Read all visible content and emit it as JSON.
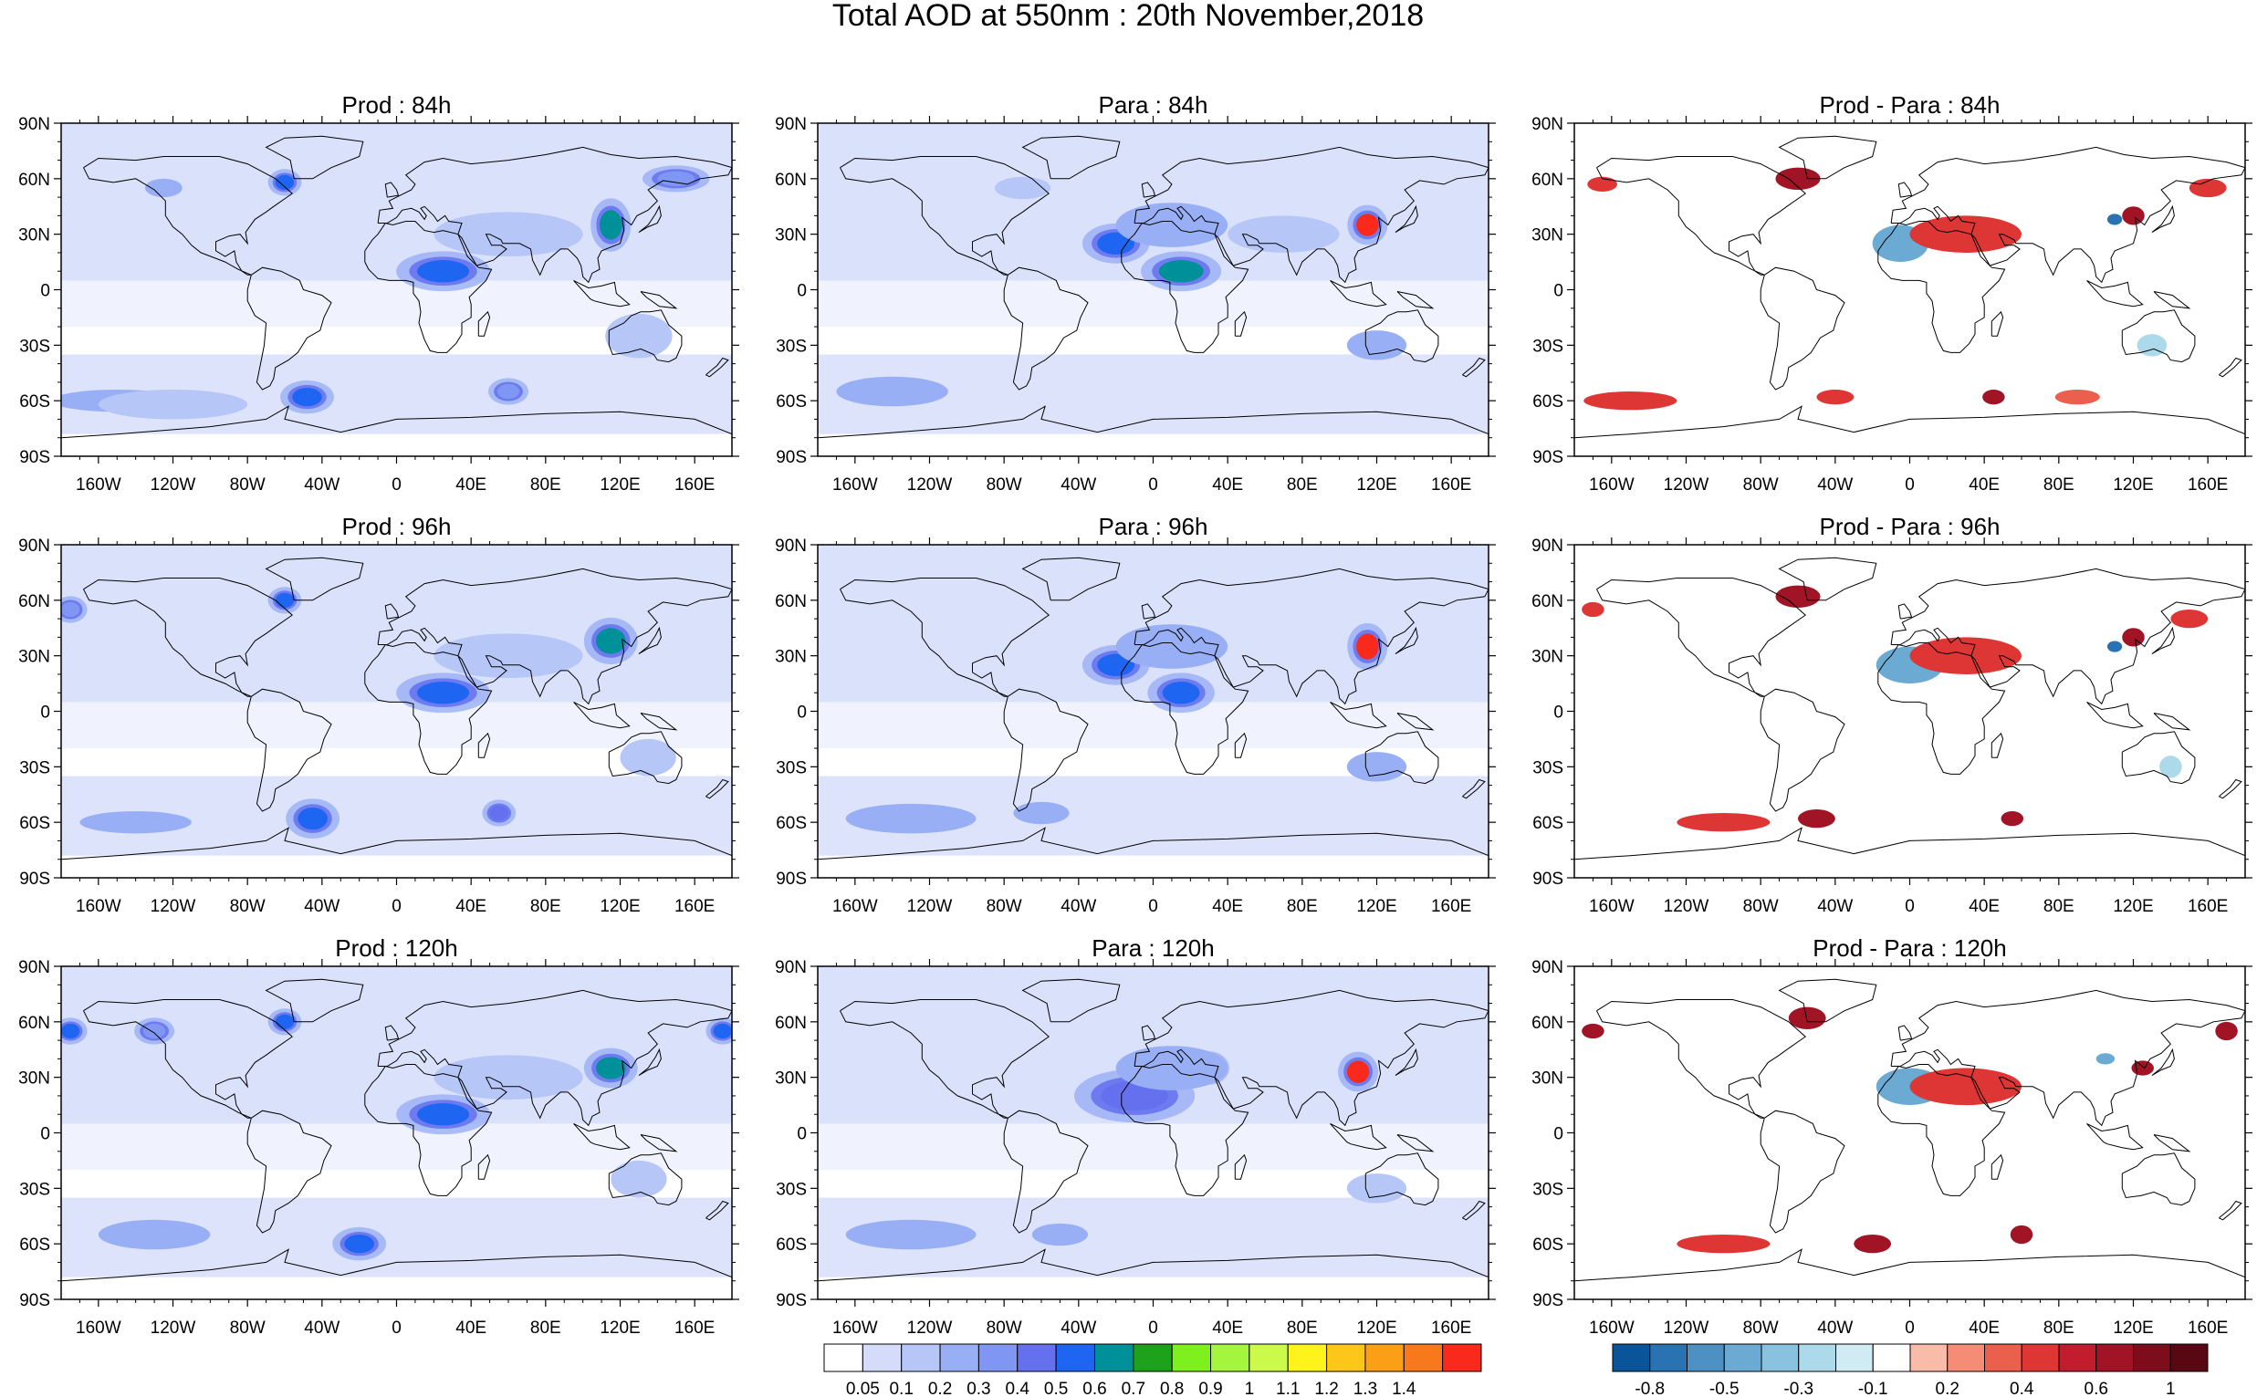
{
  "figure": {
    "title": "Total AOD at 550nm : 20th November,2018"
  },
  "axes": {
    "lat_labels": [
      "90N",
      "60N",
      "30N",
      "0",
      "30S",
      "60S",
      "90S"
    ],
    "lon_labels": [
      "160W",
      "120W",
      "80W",
      "40W",
      "0",
      "40E",
      "80E",
      "120E",
      "160E"
    ]
  },
  "panels": [
    {
      "id": "prod-84h",
      "title": "Prod : 84h",
      "kind": "aod",
      "row": 0,
      "col": 0,
      "blobs": [
        {
          "lon": -150,
          "lat": -60,
          "level": 3,
          "rx": 35,
          "ry": 6
        },
        {
          "lon": -120,
          "lat": -62,
          "level": 2,
          "rx": 40,
          "ry": 8
        },
        {
          "lon": -60,
          "lat": 58,
          "level": 6,
          "rx": 5,
          "ry": 4
        },
        {
          "lon": -125,
          "lat": 55,
          "level": 3,
          "rx": 10,
          "ry": 5
        },
        {
          "lon": 25,
          "lat": 10,
          "level": 6,
          "rx": 14,
          "ry": 6
        },
        {
          "lon": 115,
          "lat": 35,
          "level": 7,
          "rx": 6,
          "ry": 8
        },
        {
          "lon": -48,
          "lat": -58,
          "level": 6,
          "rx": 8,
          "ry": 5
        },
        {
          "lon": 60,
          "lat": -55,
          "level": 4,
          "rx": 6,
          "ry": 4
        },
        {
          "lon": 150,
          "lat": 60,
          "level": 4,
          "rx": 10,
          "ry": 4
        },
        {
          "lon": 130,
          "lat": -25,
          "level": 2,
          "rx": 18,
          "ry": 12
        },
        {
          "lon": 60,
          "lat": 30,
          "level": 2,
          "rx": 40,
          "ry": 12
        }
      ]
    },
    {
      "id": "para-84h",
      "title": "Para : 84h",
      "kind": "aod",
      "row": 0,
      "col": 1,
      "blobs": [
        {
          "lon": -20,
          "lat": 25,
          "level": 6,
          "rx": 10,
          "ry": 6
        },
        {
          "lon": 15,
          "lat": 10,
          "level": 7,
          "rx": 12,
          "ry": 6
        },
        {
          "lon": 115,
          "lat": 35,
          "level": 10,
          "rx": 6,
          "ry": 6
        },
        {
          "lon": 10,
          "lat": 35,
          "level": 3,
          "rx": 30,
          "ry": 12
        },
        {
          "lon": 120,
          "lat": -30,
          "level": 3,
          "rx": 16,
          "ry": 8
        },
        {
          "lon": -140,
          "lat": -55,
          "level": 3,
          "rx": 30,
          "ry": 8
        },
        {
          "lon": -70,
          "lat": 55,
          "level": 2,
          "rx": 15,
          "ry": 6
        },
        {
          "lon": 70,
          "lat": 30,
          "level": 2,
          "rx": 30,
          "ry": 10
        }
      ]
    },
    {
      "id": "diff-84h",
      "title": "Prod - Para : 84h",
      "kind": "diff",
      "row": 0,
      "col": 2,
      "blobs": [
        {
          "lon": -60,
          "lat": 60,
          "level": 3,
          "rx": 12,
          "ry": 6
        },
        {
          "lon": -165,
          "lat": 57,
          "level": 2,
          "rx": 8,
          "ry": 4
        },
        {
          "lon": -5,
          "lat": 25,
          "level": -2,
          "rx": 15,
          "ry": 10
        },
        {
          "lon": 30,
          "lat": 30,
          "level": 2,
          "rx": 30,
          "ry": 10
        },
        {
          "lon": 120,
          "lat": 40,
          "level": 3,
          "rx": 6,
          "ry": 5
        },
        {
          "lon": 110,
          "lat": 38,
          "level": -3,
          "rx": 4,
          "ry": 3
        },
        {
          "lon": -150,
          "lat": -60,
          "level": 2,
          "rx": 25,
          "ry": 5
        },
        {
          "lon": -40,
          "lat": -58,
          "level": 2,
          "rx": 10,
          "ry": 4
        },
        {
          "lon": 45,
          "lat": -58,
          "level": 3,
          "rx": 6,
          "ry": 4
        },
        {
          "lon": 160,
          "lat": 55,
          "level": 2,
          "rx": 10,
          "ry": 5
        },
        {
          "lon": 130,
          "lat": -30,
          "level": -1,
          "rx": 8,
          "ry": 6
        },
        {
          "lon": 90,
          "lat": -58,
          "level": 1,
          "rx": 12,
          "ry": 4
        }
      ]
    },
    {
      "id": "prod-96h",
      "title": "Prod : 96h",
      "kind": "aod",
      "row": 1,
      "col": 0,
      "blobs": [
        {
          "lon": -140,
          "lat": -60,
          "level": 3,
          "rx": 30,
          "ry": 6
        },
        {
          "lon": -45,
          "lat": -58,
          "level": 6,
          "rx": 8,
          "ry": 6
        },
        {
          "lon": 55,
          "lat": -55,
          "level": 5,
          "rx": 5,
          "ry": 4
        },
        {
          "lon": -60,
          "lat": 60,
          "level": 6,
          "rx": 5,
          "ry": 4
        },
        {
          "lon": 25,
          "lat": 10,
          "level": 6,
          "rx": 14,
          "ry": 6
        },
        {
          "lon": 115,
          "lat": 38,
          "level": 7,
          "rx": 8,
          "ry": 7
        },
        {
          "lon": -175,
          "lat": 55,
          "level": 4,
          "rx": 5,
          "ry": 4
        },
        {
          "lon": 60,
          "lat": 30,
          "level": 2,
          "rx": 40,
          "ry": 12
        },
        {
          "lon": 135,
          "lat": -25,
          "level": 2,
          "rx": 15,
          "ry": 10
        }
      ]
    },
    {
      "id": "para-96h",
      "title": "Para : 96h",
      "kind": "aod",
      "row": 1,
      "col": 1,
      "blobs": [
        {
          "lon": -20,
          "lat": 25,
          "level": 6,
          "rx": 10,
          "ry": 6
        },
        {
          "lon": 15,
          "lat": 10,
          "level": 6,
          "rx": 10,
          "ry": 6
        },
        {
          "lon": 115,
          "lat": 35,
          "level": 10,
          "rx": 6,
          "ry": 7
        },
        {
          "lon": 10,
          "lat": 35,
          "level": 3,
          "rx": 30,
          "ry": 12
        },
        {
          "lon": 120,
          "lat": -30,
          "level": 3,
          "rx": 16,
          "ry": 8
        },
        {
          "lon": -130,
          "lat": -58,
          "level": 3,
          "rx": 35,
          "ry": 8
        },
        {
          "lon": -60,
          "lat": -55,
          "level": 3,
          "rx": 15,
          "ry": 6
        }
      ]
    },
    {
      "id": "diff-96h",
      "title": "Prod - Para : 96h",
      "kind": "diff",
      "row": 1,
      "col": 2,
      "blobs": [
        {
          "lon": -60,
          "lat": 62,
          "level": 3,
          "rx": 12,
          "ry": 6
        },
        {
          "lon": -170,
          "lat": 55,
          "level": 2,
          "rx": 6,
          "ry": 4
        },
        {
          "lon": 0,
          "lat": 25,
          "level": -2,
          "rx": 18,
          "ry": 10
        },
        {
          "lon": 30,
          "lat": 30,
          "level": 2,
          "rx": 30,
          "ry": 10
        },
        {
          "lon": 120,
          "lat": 40,
          "level": 3,
          "rx": 6,
          "ry": 5
        },
        {
          "lon": 110,
          "lat": 35,
          "level": -3,
          "rx": 4,
          "ry": 3
        },
        {
          "lon": -100,
          "lat": -60,
          "level": 2,
          "rx": 25,
          "ry": 5
        },
        {
          "lon": -50,
          "lat": -58,
          "level": 3,
          "rx": 10,
          "ry": 5
        },
        {
          "lon": 55,
          "lat": -58,
          "level": 3,
          "rx": 6,
          "ry": 4
        },
        {
          "lon": 150,
          "lat": 50,
          "level": 2,
          "rx": 10,
          "ry": 5
        },
        {
          "lon": 140,
          "lat": -30,
          "level": -1,
          "rx": 6,
          "ry": 6
        }
      ]
    },
    {
      "id": "prod-120h",
      "title": "Prod : 120h",
      "kind": "aod",
      "row": 2,
      "col": 0,
      "blobs": [
        {
          "lon": -130,
          "lat": -55,
          "level": 3,
          "rx": 30,
          "ry": 8
        },
        {
          "lon": -20,
          "lat": -60,
          "level": 6,
          "rx": 8,
          "ry": 5
        },
        {
          "lon": -60,
          "lat": 60,
          "level": 6,
          "rx": 5,
          "ry": 4
        },
        {
          "lon": 25,
          "lat": 10,
          "level": 6,
          "rx": 14,
          "ry": 6
        },
        {
          "lon": 115,
          "lat": 35,
          "level": 7,
          "rx": 8,
          "ry": 6
        },
        {
          "lon": -175,
          "lat": 55,
          "level": 6,
          "rx": 5,
          "ry": 4
        },
        {
          "lon": 175,
          "lat": 55,
          "level": 6,
          "rx": 5,
          "ry": 4
        },
        {
          "lon": -130,
          "lat": 55,
          "level": 4,
          "rx": 6,
          "ry": 4
        },
        {
          "lon": 60,
          "lat": 30,
          "level": 2,
          "rx": 40,
          "ry": 12
        },
        {
          "lon": 130,
          "lat": -25,
          "level": 2,
          "rx": 15,
          "ry": 10
        }
      ]
    },
    {
      "id": "para-120h",
      "title": "Para : 120h",
      "kind": "aod",
      "row": 2,
      "col": 1,
      "blobs": [
        {
          "lon": -10,
          "lat": 20,
          "level": 5,
          "rx": 18,
          "ry": 8
        },
        {
          "lon": 30,
          "lat": 35,
          "level": 6,
          "rx": 6,
          "ry": 5
        },
        {
          "lon": 110,
          "lat": 33,
          "level": 10,
          "rx": 6,
          "ry": 6
        },
        {
          "lon": 10,
          "lat": 35,
          "level": 3,
          "rx": 30,
          "ry": 12
        },
        {
          "lon": -130,
          "lat": -55,
          "level": 3,
          "rx": 35,
          "ry": 8
        },
        {
          "lon": -50,
          "lat": -55,
          "level": 3,
          "rx": 15,
          "ry": 6
        },
        {
          "lon": 120,
          "lat": -30,
          "level": 2,
          "rx": 16,
          "ry": 8
        }
      ]
    },
    {
      "id": "diff-120h",
      "title": "Prod - Para : 120h",
      "kind": "diff",
      "row": 2,
      "col": 2,
      "blobs": [
        {
          "lon": -55,
          "lat": 62,
          "level": 3,
          "rx": 10,
          "ry": 6
        },
        {
          "lon": -170,
          "lat": 55,
          "level": 3,
          "rx": 6,
          "ry": 4
        },
        {
          "lon": 0,
          "lat": 25,
          "level": -2,
          "rx": 18,
          "ry": 10
        },
        {
          "lon": 30,
          "lat": 25,
          "level": 2,
          "rx": 30,
          "ry": 10
        },
        {
          "lon": 125,
          "lat": 35,
          "level": 3,
          "rx": 6,
          "ry": 4
        },
        {
          "lon": 105,
          "lat": 40,
          "level": -2,
          "rx": 5,
          "ry": 3
        },
        {
          "lon": -20,
          "lat": -60,
          "level": 4,
          "rx": 10,
          "ry": 5
        },
        {
          "lon": -100,
          "lat": -60,
          "level": 2,
          "rx": 25,
          "ry": 5
        },
        {
          "lon": 60,
          "lat": -55,
          "level": 3,
          "rx": 6,
          "ry": 5
        },
        {
          "lon": 170,
          "lat": 55,
          "level": 3,
          "rx": 6,
          "ry": 5
        }
      ]
    }
  ],
  "colorbars": {
    "aod": {
      "colors": [
        "#ffffff",
        "#d4dcfa",
        "#b6c6f7",
        "#98aff5",
        "#7f96f2",
        "#6470ee",
        "#1e66f2",
        "#00909a",
        "#1fa21b",
        "#7df01d",
        "#a3f53d",
        "#ccfa4a",
        "#fff31c",
        "#fdc618",
        "#fa9f16",
        "#f7791b",
        "#f92a1b"
      ],
      "labels": [
        "0.05",
        "0.1",
        "0.2",
        "0.3",
        "0.4",
        "0.5",
        "0.6",
        "0.7",
        "0.8",
        "0.9",
        "1",
        "1.1",
        "1.2",
        "1.3",
        "1.4"
      ]
    },
    "diff": {
      "colors": [
        "#0a5499",
        "#2a73b2",
        "#4d90c4",
        "#6baad3",
        "#89c2df",
        "#addaea",
        "#d1ebf4",
        "#ffffff",
        "#f9bca8",
        "#f58c76",
        "#eb5f4d",
        "#de3634",
        "#c11d2c",
        "#a01425",
        "#7d0d1b",
        "#590813"
      ],
      "labels": [
        "-0.8",
        "-0.5",
        "-0.3",
        "-0.1",
        "0.2",
        "0.4",
        "0.6",
        "1"
      ]
    }
  },
  "palette": {
    "aod_levels": [
      "#ffffff",
      "#d4dcfa",
      "#b6c6f7",
      "#98aff5",
      "#7f96f2",
      "#6470ee",
      "#1e66f2",
      "#00909a",
      "#1fa21b",
      "#7df01d",
      "#f92a1b"
    ],
    "diff_pos": [
      "#f9bca8",
      "#eb5f4d",
      "#de3634",
      "#a01425"
    ],
    "diff_neg": [
      "#addaea",
      "#6baad3",
      "#2a73b2"
    ],
    "coastline": "#000000"
  }
}
